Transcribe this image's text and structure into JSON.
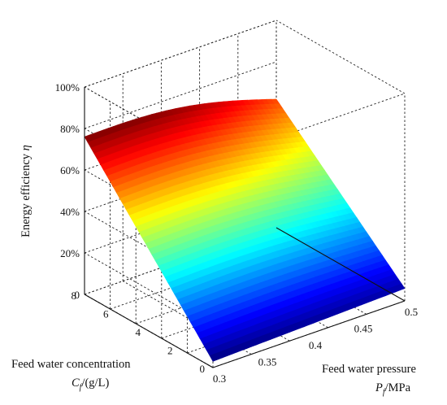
{
  "chart_data": {
    "type": "surface",
    "title": "",
    "x_axis": {
      "label": "Feed water pressure",
      "symbol": "P",
      "subscript": "f",
      "unit": "/MPa",
      "range": [
        0.3,
        0.5
      ],
      "ticks": [
        "0.3",
        "0.35",
        "0.4",
        "0.45",
        "0.5"
      ]
    },
    "y_axis": {
      "label": "Feed water concentration",
      "symbol": "C",
      "subscript": "f",
      "unit": "/(g/L)",
      "range": [
        0,
        8
      ],
      "ticks": [
        "0",
        "2",
        "4",
        "6",
        "8"
      ]
    },
    "z_axis": {
      "label": "Energy efficiency",
      "symbol": "η",
      "range": [
        0,
        100
      ],
      "ticks": [
        "0",
        "20%",
        "40%",
        "60%",
        "80%",
        "100%"
      ]
    },
    "grid": true,
    "colormap": "jet",
    "surface_corners": [
      {
        "pressure": 0.3,
        "concentration": 8,
        "efficiency": 76
      },
      {
        "pressure": 0.5,
        "concentration": 8,
        "efficiency": 62
      },
      {
        "pressure": 0.5,
        "concentration": 0,
        "efficiency": 6
      },
      {
        "pressure": 0.3,
        "concentration": 0,
        "efficiency": 3
      }
    ]
  }
}
